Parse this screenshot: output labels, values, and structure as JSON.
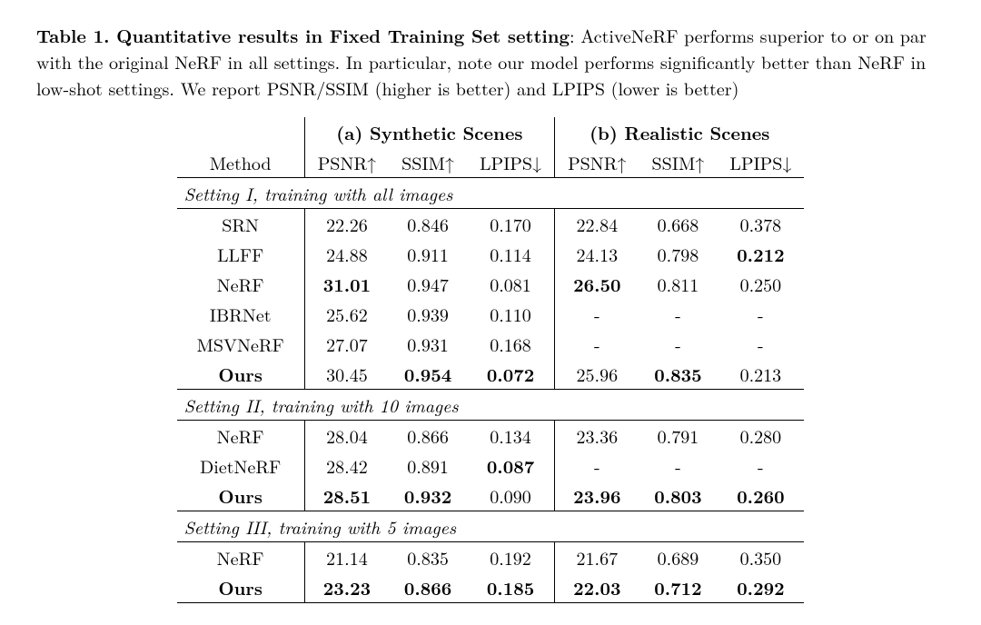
{
  "caption": {
    "title": "Table 1. Quantitative results in Fixed Training Set setting",
    "body": ": ActiveNeRF performs superior to or on par with the original NeRF in all settings. In particular, note our model performs significantly better than NeRF in low-shot settings. We report PSNR/SSIM (higher is better) and LPIPS (lower is better)"
  },
  "headers": {
    "method": "Method",
    "group_a": "(a) Synthetic Scenes",
    "group_b": "(b) Realistic Scenes",
    "psnr": "PSNR",
    "ssim": "SSIM",
    "lpips": "LPIPS",
    "up": "↑",
    "down": "↓"
  },
  "sections": [
    {
      "label": "Setting I, training with all images",
      "rows": [
        {
          "m": "SRN",
          "mb": false,
          "a": [
            {
              "v": "22.26",
              "b": false
            },
            {
              "v": "0.846",
              "b": false
            },
            {
              "v": "0.170",
              "b": false
            }
          ],
          "b": [
            {
              "v": "22.84",
              "b": false
            },
            {
              "v": "0.668",
              "b": false
            },
            {
              "v": "0.378",
              "b": false
            }
          ]
        },
        {
          "m": "LLFF",
          "mb": false,
          "a": [
            {
              "v": "24.88",
              "b": false
            },
            {
              "v": "0.911",
              "b": false
            },
            {
              "v": "0.114",
              "b": false
            }
          ],
          "b": [
            {
              "v": "24.13",
              "b": false
            },
            {
              "v": "0.798",
              "b": false
            },
            {
              "v": "0.212",
              "b": true
            }
          ]
        },
        {
          "m": "NeRF",
          "mb": false,
          "a": [
            {
              "v": "31.01",
              "b": true
            },
            {
              "v": "0.947",
              "b": false
            },
            {
              "v": "0.081",
              "b": false
            }
          ],
          "b": [
            {
              "v": "26.50",
              "b": true
            },
            {
              "v": "0.811",
              "b": false
            },
            {
              "v": "0.250",
              "b": false
            }
          ]
        },
        {
          "m": "IBRNet",
          "mb": false,
          "a": [
            {
              "v": "25.62",
              "b": false
            },
            {
              "v": "0.939",
              "b": false
            },
            {
              "v": "0.110",
              "b": false
            }
          ],
          "b": [
            {
              "v": "-",
              "b": false
            },
            {
              "v": "-",
              "b": false
            },
            {
              "v": "-",
              "b": false
            }
          ]
        },
        {
          "m": "MSVNeRF",
          "mb": false,
          "a": [
            {
              "v": "27.07",
              "b": false
            },
            {
              "v": "0.931",
              "b": false
            },
            {
              "v": "0.168",
              "b": false
            }
          ],
          "b": [
            {
              "v": "-",
              "b": false
            },
            {
              "v": "-",
              "b": false
            },
            {
              "v": "-",
              "b": false
            }
          ]
        },
        {
          "m": "Ours",
          "mb": true,
          "a": [
            {
              "v": "30.45",
              "b": false
            },
            {
              "v": "0.954",
              "b": true
            },
            {
              "v": "0.072",
              "b": true
            }
          ],
          "b": [
            {
              "v": "25.96",
              "b": false
            },
            {
              "v": "0.835",
              "b": true
            },
            {
              "v": "0.213",
              "b": false
            }
          ]
        }
      ]
    },
    {
      "label": "Setting II, training with 10 images",
      "rows": [
        {
          "m": "NeRF",
          "mb": false,
          "a": [
            {
              "v": "28.04",
              "b": false
            },
            {
              "v": "0.866",
              "b": false
            },
            {
              "v": "0.134",
              "b": false
            }
          ],
          "b": [
            {
              "v": "23.36",
              "b": false
            },
            {
              "v": "0.791",
              "b": false
            },
            {
              "v": "0.280",
              "b": false
            }
          ]
        },
        {
          "m": "DietNeRF",
          "mb": false,
          "a": [
            {
              "v": "28.42",
              "b": false
            },
            {
              "v": "0.891",
              "b": false
            },
            {
              "v": "0.087",
              "b": true
            }
          ],
          "b": [
            {
              "v": "-",
              "b": false
            },
            {
              "v": "-",
              "b": false
            },
            {
              "v": "-",
              "b": false
            }
          ]
        },
        {
          "m": "Ours",
          "mb": true,
          "a": [
            {
              "v": "28.51",
              "b": true
            },
            {
              "v": "0.932",
              "b": true
            },
            {
              "v": "0.090",
              "b": false
            }
          ],
          "b": [
            {
              "v": "23.96",
              "b": true
            },
            {
              "v": "0.803",
              "b": true
            },
            {
              "v": "0.260",
              "b": true
            }
          ]
        }
      ]
    },
    {
      "label": "Setting III, training with 5 images",
      "rows": [
        {
          "m": "NeRF",
          "mb": false,
          "a": [
            {
              "v": "21.14",
              "b": false
            },
            {
              "v": "0.835",
              "b": false
            },
            {
              "v": "0.192",
              "b": false
            }
          ],
          "b": [
            {
              "v": "21.67",
              "b": false
            },
            {
              "v": "0.689",
              "b": false
            },
            {
              "v": "0.350",
              "b": false
            }
          ]
        },
        {
          "m": "Ours",
          "mb": true,
          "a": [
            {
              "v": "23.23",
              "b": true
            },
            {
              "v": "0.866",
              "b": true
            },
            {
              "v": "0.185",
              "b": true
            }
          ],
          "b": [
            {
              "v": "22.03",
              "b": true
            },
            {
              "v": "0.712",
              "b": true
            },
            {
              "v": "0.292",
              "b": true
            }
          ]
        }
      ]
    }
  ],
  "style": {
    "text_color": "#000000",
    "background_color": "#ffffff",
    "font_size_pt": 15,
    "rule_color": "#000000"
  }
}
